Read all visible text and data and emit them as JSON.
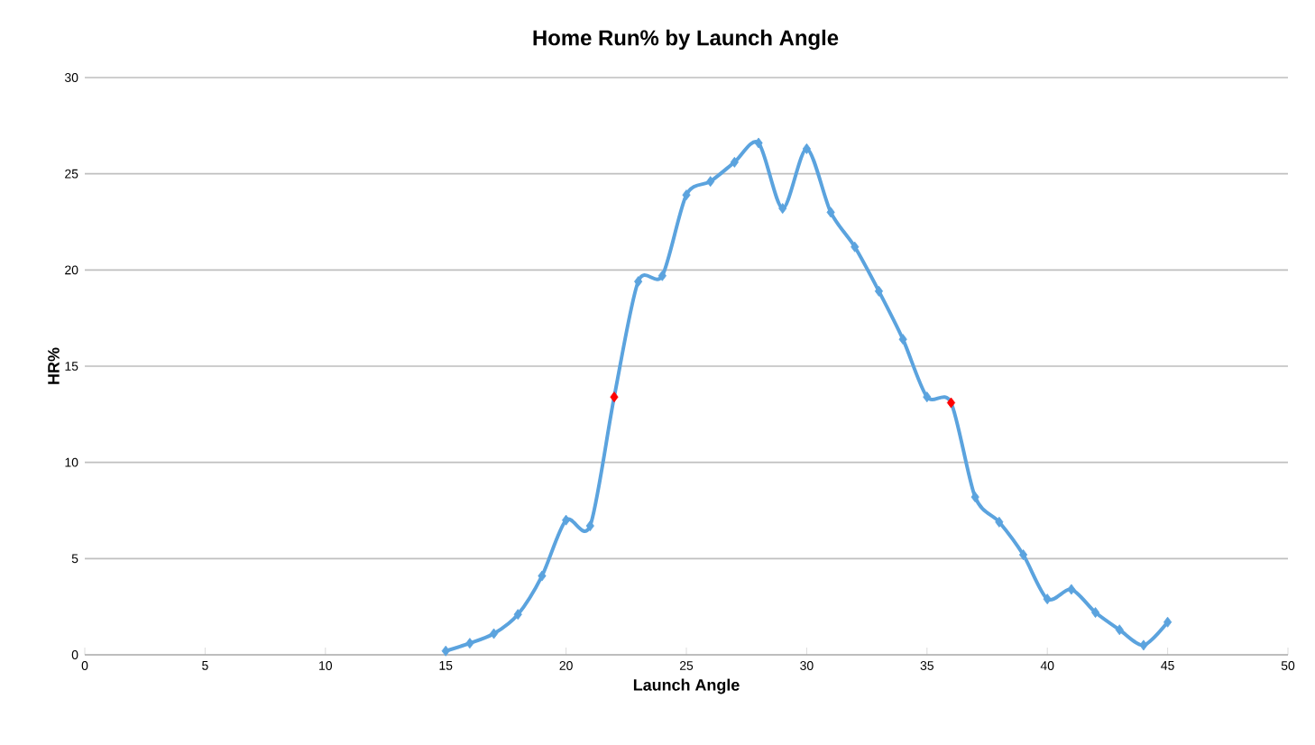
{
  "chart_data": {
    "type": "line",
    "title": "Home Run% by Launch Angle",
    "xlabel": "Launch Angle",
    "ylabel": "HR%",
    "x": [
      15,
      16,
      17,
      18,
      19,
      20,
      21,
      22,
      23,
      24,
      25,
      26,
      27,
      28,
      29,
      30,
      31,
      32,
      33,
      34,
      35,
      36,
      37,
      38,
      39,
      40,
      41,
      42,
      43,
      44,
      45
    ],
    "series": [
      {
        "color": "#5ba3de",
        "values": [
          0.2,
          0.6,
          1.1,
          2.1,
          4.1,
          7.0,
          6.7,
          13.4,
          19.4,
          19.7,
          23.9,
          24.6,
          25.6,
          26.6,
          23.2,
          26.3,
          23.0,
          21.2,
          18.9,
          16.4,
          13.4,
          13.1,
          8.2,
          6.9,
          5.2,
          2.9,
          3.4,
          2.2,
          1.3,
          0.5,
          1.7
        ],
        "colors": [
          "#5ba3de",
          "#5ba3de",
          "#5ba3de",
          "#5ba3de",
          "#5ba3de",
          "#5ba3de",
          "#5ba3de",
          "#ff0000",
          "#5ba3de",
          "#5ba3de",
          "#5ba3de",
          "#5ba3de",
          "#5ba3de",
          "#5ba3de",
          "#5ba3de",
          "#5ba3de",
          "#5ba3de",
          "#5ba3de",
          "#5ba3de",
          "#5ba3de",
          "#5ba3de",
          "#ff0000",
          "#5ba3de",
          "#5ba3de",
          "#5ba3de",
          "#5ba3de",
          "#5ba3de",
          "#5ba3de",
          "#5ba3de",
          "#5ba3de",
          "#5ba3de"
        ]
      }
    ],
    "xlim": [
      0,
      50
    ],
    "xticks": [
      0,
      5,
      10,
      15,
      20,
      25,
      30,
      35,
      40,
      45,
      50
    ],
    "ylim": [
      0,
      30
    ],
    "yticks": [
      0,
      5,
      10,
      15,
      20,
      25,
      30
    ],
    "grid": "y",
    "marker": "diamond",
    "line_style": "solid"
  }
}
